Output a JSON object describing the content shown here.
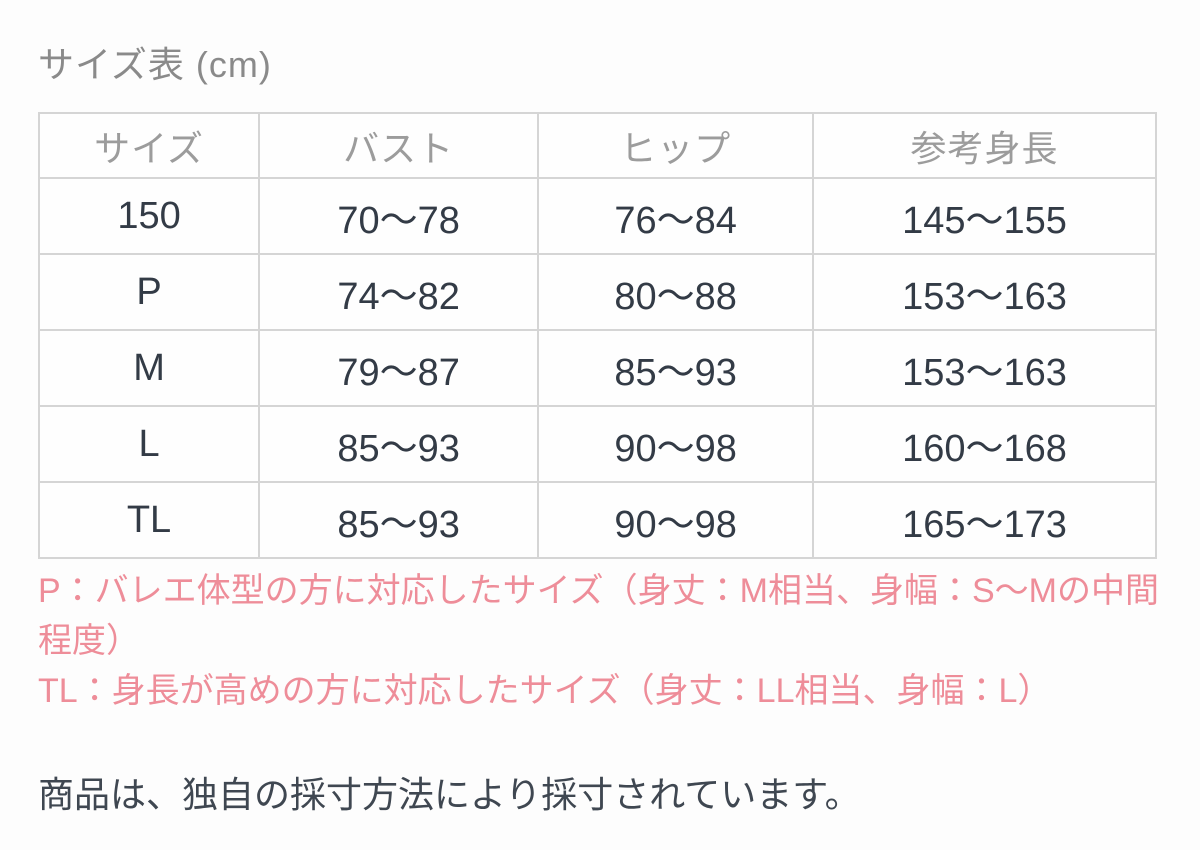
{
  "page": {
    "title": "サイズ表 (cm)"
  },
  "size_table": {
    "columns": [
      "サイズ",
      "バスト",
      "ヒップ",
      "参考身長"
    ],
    "rows": [
      [
        "150",
        "70〜78",
        "76〜84",
        "145〜155"
      ],
      [
        "P",
        "74〜82",
        "80〜88",
        "153〜163"
      ],
      [
        "M",
        "79〜87",
        "85〜93",
        "153〜163"
      ],
      [
        "L",
        "85〜93",
        "90〜98",
        "160〜168"
      ],
      [
        "TL",
        "85〜93",
        "90〜98",
        "165〜173"
      ]
    ]
  },
  "notes": {
    "color": "#ee8d99",
    "lines": [
      "P：バレエ体型の方に対応したサイズ（身丈：M相当、身幅：S〜Mの中間",
      "程度）",
      "TL：身長が高めの方に対応したサイズ（身丈：LL相当、身幅：L）"
    ]
  },
  "footer": {
    "text": "商品は、独自の採寸方法により採寸されています。"
  }
}
